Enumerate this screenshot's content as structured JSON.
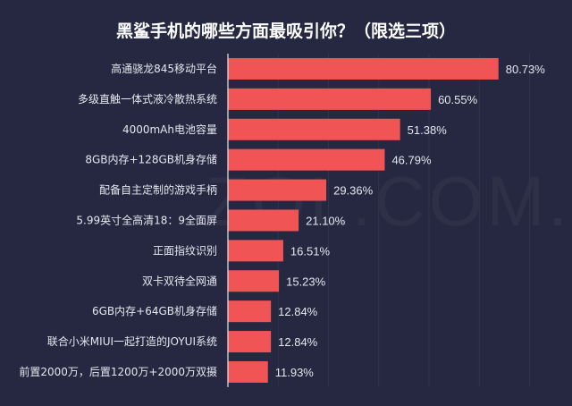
{
  "watermark": "ZOL.COM.CN",
  "colors": {
    "background": "#252840",
    "bar": "#f05454",
    "text": "#e6e6ee",
    "grid": "#30334c"
  },
  "chart_data": {
    "type": "bar",
    "orientation": "horizontal",
    "title": "黑鲨手机的哪些方面最吸引你？（限选三项）",
    "categories": [
      "高通骁龙845移动平台",
      "多级直触一体式液冷散热系统",
      "4000mAh电池容量",
      "8GB内存+128GB机身存储",
      "配备自主定制的游戏手柄",
      "5.99英寸全高清18：9全面屏",
      "正面指纹识别",
      "双卡双待全网通",
      "6GB内存+64GB机身存储",
      "联合小米MIUI一起打造的JOYUI系统",
      "前置2000万，后置1200万+2000万双摄"
    ],
    "values": [
      80.73,
      60.55,
      51.38,
      46.79,
      29.36,
      21.1,
      16.51,
      15.23,
      12.84,
      12.84,
      11.93
    ],
    "labels": [
      "80.73%",
      "60.55%",
      "51.38%",
      "46.79%",
      "29.36%",
      "21.10%",
      "16.51%",
      "15.23%",
      "12.84%",
      "12.84%",
      "11.93%"
    ],
    "xlim": [
      0,
      90
    ],
    "grid_step": 15,
    "grid": true,
    "legend": "none"
  }
}
